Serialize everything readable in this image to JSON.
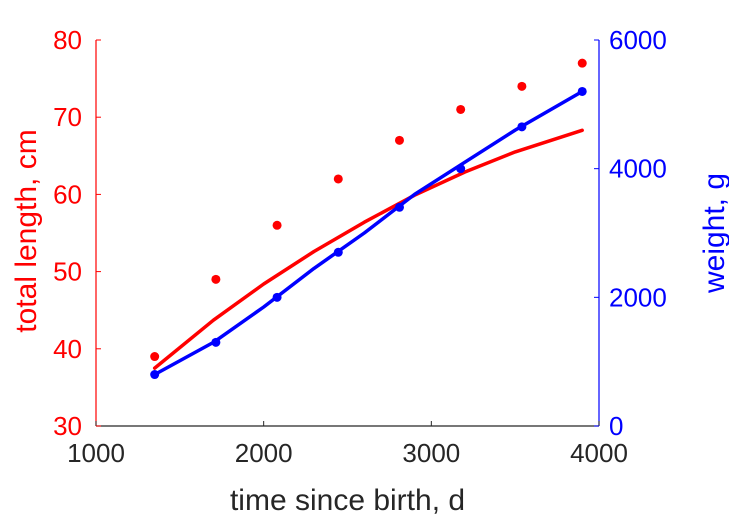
{
  "chart_data": {
    "type": "scatter",
    "xlabel": "time since birth, d",
    "ylabel_left": "total length, cm",
    "ylabel_right": "weight, g",
    "xlim": [
      1000,
      4000
    ],
    "ylim_left": [
      30,
      80
    ],
    "ylim_right": [
      0,
      6000
    ],
    "xticks": [
      "1000",
      "2000",
      "3000",
      "4000"
    ],
    "yticks_left": [
      "30",
      "40",
      "50",
      "60",
      "70",
      "80"
    ],
    "yticks_right": [
      "0",
      "2000",
      "4000",
      "6000"
    ],
    "grid": false,
    "colors": {
      "left": "#ff0000",
      "right": "#0000ff",
      "text": "#262626"
    },
    "series": [
      {
        "axis": "left",
        "kind": "points",
        "x": [
          1350,
          1715,
          2080,
          2445,
          2810,
          3175,
          3540,
          3900
        ],
        "y": [
          39,
          49,
          56,
          62,
          67,
          71,
          74,
          77
        ]
      },
      {
        "axis": "left",
        "kind": "line",
        "x": [
          1350,
          1700,
          2000,
          2300,
          2600,
          2900,
          3200,
          3500,
          3900
        ],
        "y": [
          37.5,
          43.7,
          48.4,
          52.6,
          56.4,
          59.9,
          62.9,
          65.5,
          68.3
        ]
      },
      {
        "axis": "right",
        "kind": "points",
        "x": [
          1350,
          1715,
          2080,
          2445,
          2810,
          3175,
          3540,
          3900
        ],
        "y": [
          800,
          1300,
          2000,
          2700,
          3400,
          4000,
          4650,
          5200
        ]
      },
      {
        "axis": "right",
        "kind": "line",
        "x": [
          1350,
          1700,
          2000,
          2300,
          2600,
          2900,
          3200,
          3500,
          3900
        ],
        "y": [
          800,
          1300,
          1850,
          2450,
          3000,
          3600,
          4100,
          4600,
          5200
        ]
      }
    ]
  }
}
